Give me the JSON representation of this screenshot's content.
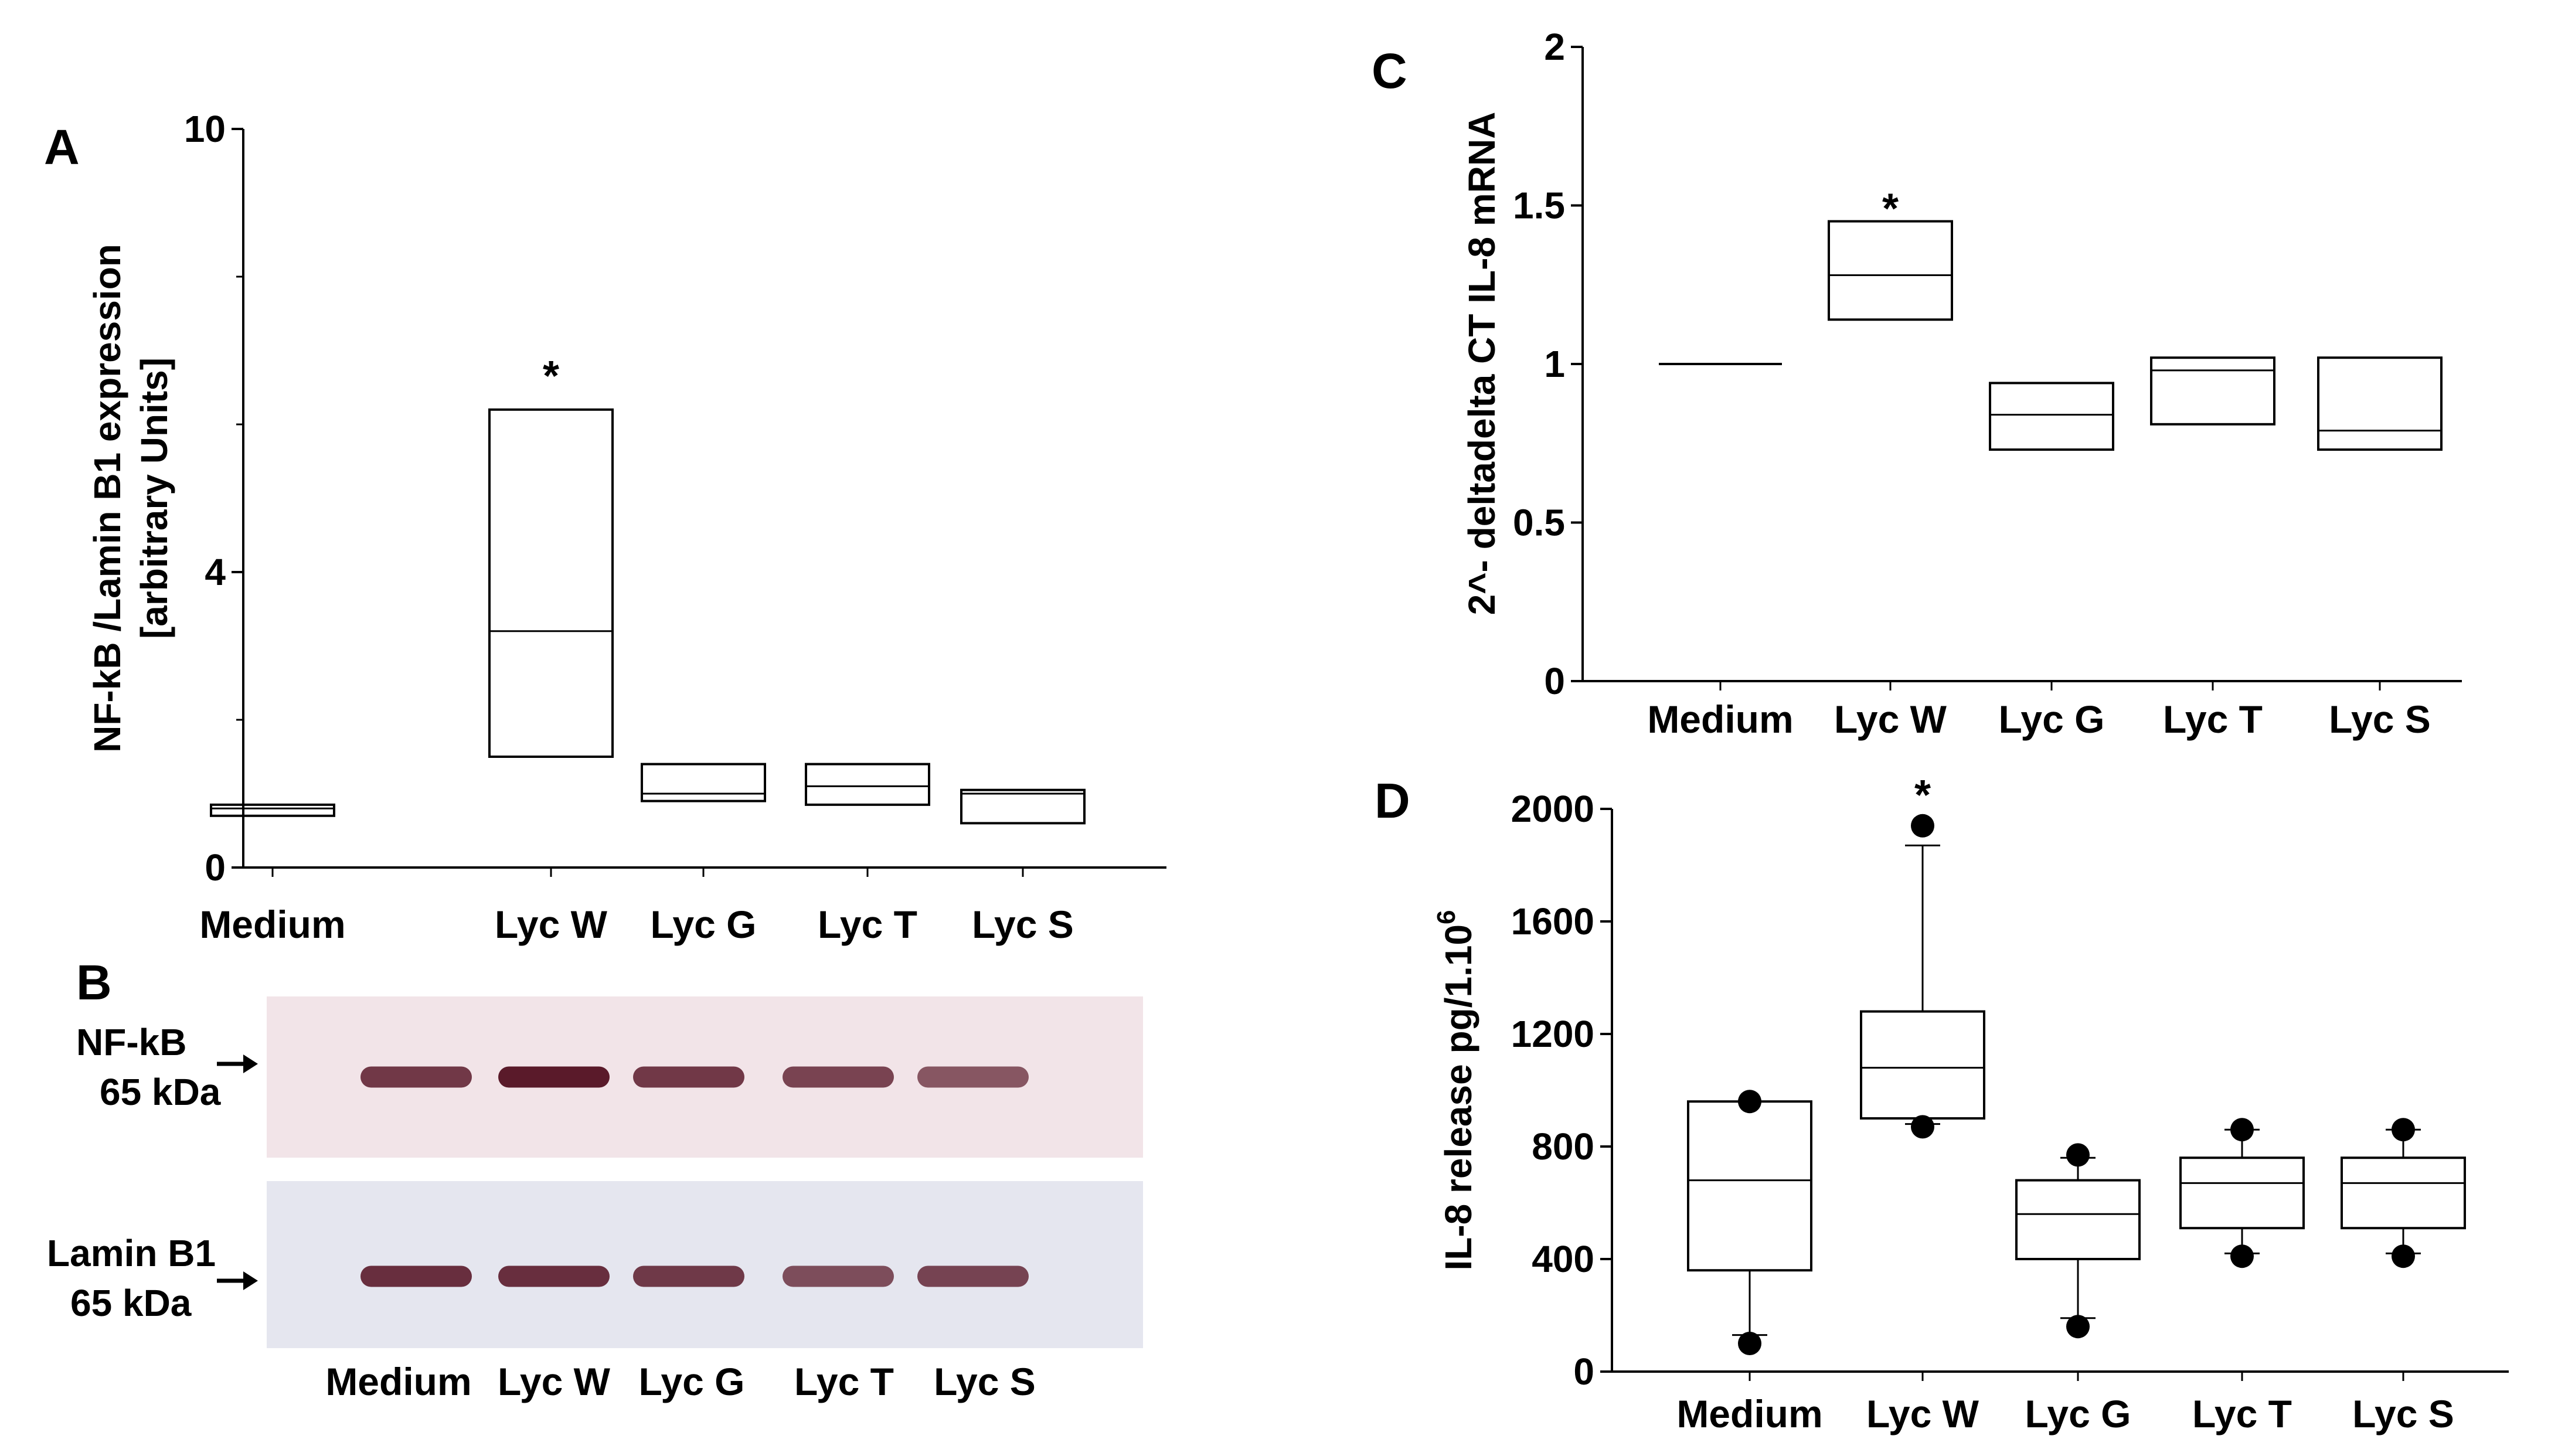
{
  "panels": {
    "A": "A",
    "B": "B",
    "C": "C",
    "D": "D"
  },
  "blot": {
    "type": "western-blot",
    "lanes": [
      "Medium",
      "Lyc W",
      "Lyc G",
      "Lyc T",
      "Lyc S"
    ],
    "strip1_label": [
      "NF-kB",
      "65 kDa"
    ],
    "strip2_label": [
      "Lamin B1",
      "65 kDa"
    ],
    "strip1_color": "#f2e4e8",
    "strip2_color": "#e5e6ef",
    "band_color": "#5a1a2a",
    "band_intensity_strip1": [
      0.85,
      1.0,
      0.85,
      0.8,
      0.7
    ],
    "band_intensity_strip2": [
      0.9,
      0.9,
      0.85,
      0.75,
      0.8
    ]
  },
  "chart_data": [
    {
      "panel": "A",
      "type": "box",
      "categories": [
        "Medium",
        "Lyc W",
        "Lyc G",
        "Lyc T",
        "Lyc S"
      ],
      "ylabel_lines": [
        "NF-kB /Lamin B1 expression",
        "[arbitrary Units]"
      ],
      "ylim": [
        0,
        10
      ],
      "y_tick_labels": [
        {
          "v": 0,
          "t": "0"
        },
        {
          "v": 4,
          "t": "4"
        },
        {
          "v": 10,
          "t": "10"
        }
      ],
      "y_minor_ticks": [
        2,
        6,
        8
      ],
      "boxes": [
        {
          "q1": 0.7,
          "median": 0.8,
          "q3": 0.85
        },
        {
          "q1": 1.5,
          "median": 3.2,
          "q3": 6.2
        },
        {
          "q1": 0.9,
          "median": 1.0,
          "q3": 1.4
        },
        {
          "q1": 0.85,
          "median": 1.1,
          "q3": 1.4
        },
        {
          "q1": 0.6,
          "median": 1.0,
          "q3": 1.05
        }
      ],
      "annotations": [
        {
          "category": "Lyc W",
          "text": "*",
          "y": 6.7
        }
      ]
    },
    {
      "panel": "C",
      "type": "box",
      "categories": [
        "Medium",
        "Lyc W",
        "Lyc G",
        "Lyc T",
        "Lyc S"
      ],
      "ylabel": "2^- deltadelta CT IL-8 mRNA",
      "ylim": [
        0,
        2
      ],
      "y_tick_labels": [
        {
          "v": 0,
          "t": "0"
        },
        {
          "v": 0.5,
          "t": "0.5"
        },
        {
          "v": 1,
          "t": "1"
        },
        {
          "v": 1.5,
          "t": "1.5"
        },
        {
          "v": 2,
          "t": "2"
        }
      ],
      "boxes": [
        {
          "q1": 1.0,
          "median": 1.0,
          "q3": 1.0
        },
        {
          "q1": 1.14,
          "median": 1.28,
          "q3": 1.45
        },
        {
          "q1": 0.73,
          "median": 0.84,
          "q3": 0.94
        },
        {
          "q1": 0.81,
          "median": 0.98,
          "q3": 1.02
        },
        {
          "q1": 0.73,
          "median": 0.79,
          "q3": 1.02
        }
      ],
      "annotations": [
        {
          "category": "Lyc W",
          "text": "*",
          "y": 1.5
        }
      ]
    },
    {
      "panel": "D",
      "type": "box",
      "categories": [
        "Medium",
        "Lyc W",
        "Lyc G",
        "Lyc T",
        "Lyc S"
      ],
      "ylabel": "IL-8 release pg/1.10",
      "ylabel_superscript": "6",
      "ylim": [
        0,
        2000
      ],
      "y_tick_labels": [
        {
          "v": 0,
          "t": "0"
        },
        {
          "v": 400,
          "t": "400"
        },
        {
          "v": 800,
          "t": "800"
        },
        {
          "v": 1200,
          "t": "1200"
        },
        {
          "v": 1600,
          "t": "1600"
        },
        {
          "v": 2000,
          "t": "2000"
        }
      ],
      "boxes": [
        {
          "min": 130,
          "q1": 360,
          "median": 680,
          "q3": 960,
          "max": 960,
          "outliers": [
            100,
            960
          ]
        },
        {
          "min": 880,
          "q1": 900,
          "median": 1080,
          "q3": 1280,
          "max": 1870,
          "outliers": [
            870,
            1940
          ]
        },
        {
          "min": 190,
          "q1": 400,
          "median": 560,
          "q3": 680,
          "max": 760,
          "outliers": [
            160,
            770
          ]
        },
        {
          "min": 420,
          "q1": 510,
          "median": 670,
          "q3": 760,
          "max": 860,
          "outliers": [
            410,
            860
          ]
        },
        {
          "min": 420,
          "q1": 510,
          "median": 670,
          "q3": 760,
          "max": 860,
          "outliers": [
            410,
            860
          ]
        }
      ],
      "annotations": [
        {
          "category": "Lyc W",
          "text": "*",
          "y": 2060
        }
      ]
    }
  ]
}
